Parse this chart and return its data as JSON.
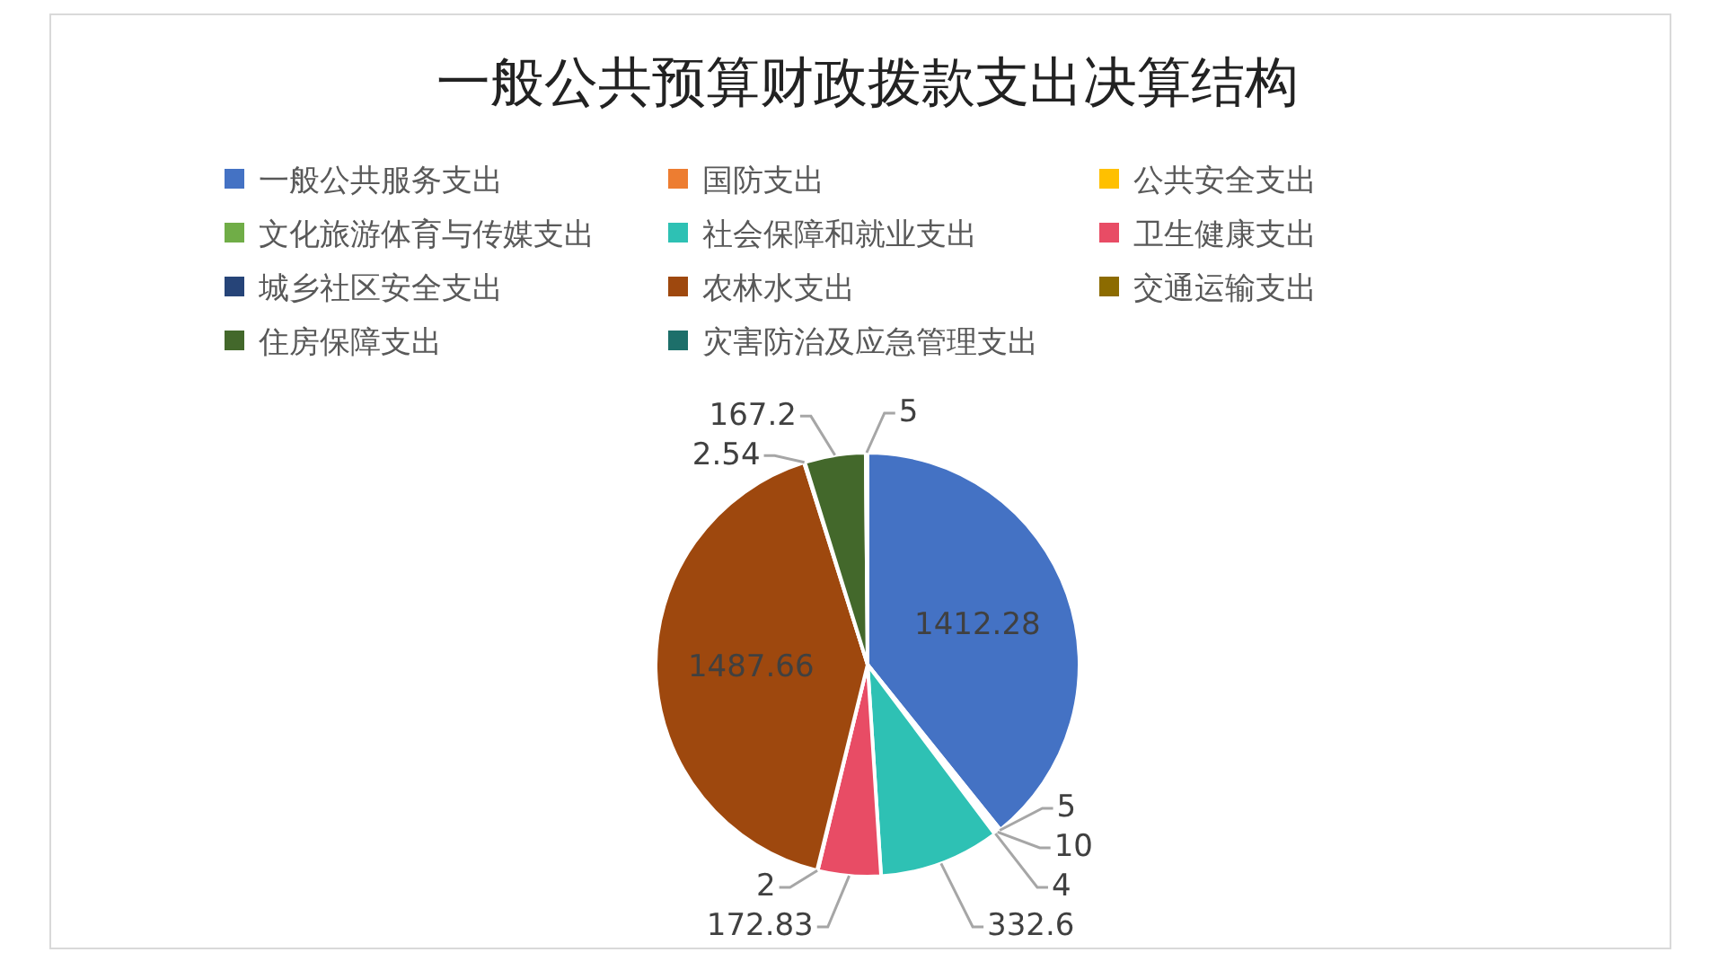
{
  "chart_data": {
    "type": "pie",
    "title": "一般公共预算财政拨款支出决算结构",
    "categories": [
      "一般公共服务支出",
      "国防支出",
      "公共安全支出",
      "文化旅游体育与传媒支出",
      "社会保障和就业支出",
      "卫生健康支出",
      "城乡社区安全支出",
      "农林水支出",
      "交通运输支出",
      "住房保障支出",
      "灾害防治及应急管理支出"
    ],
    "values": [
      1412.28,
      5,
      10,
      4,
      332.6,
      172.83,
      2,
      1487.66,
      2.54,
      167.2,
      5
    ],
    "colors": [
      "#4472c4",
      "#ed7d31",
      "#ffc000",
      "#70ad47",
      "#2ec1b4",
      "#e84c65",
      "#264478",
      "#9e480e",
      "#8c6b00",
      "#43682b",
      "#1d6f6a"
    ],
    "legend": "top",
    "data_labels": true
  }
}
